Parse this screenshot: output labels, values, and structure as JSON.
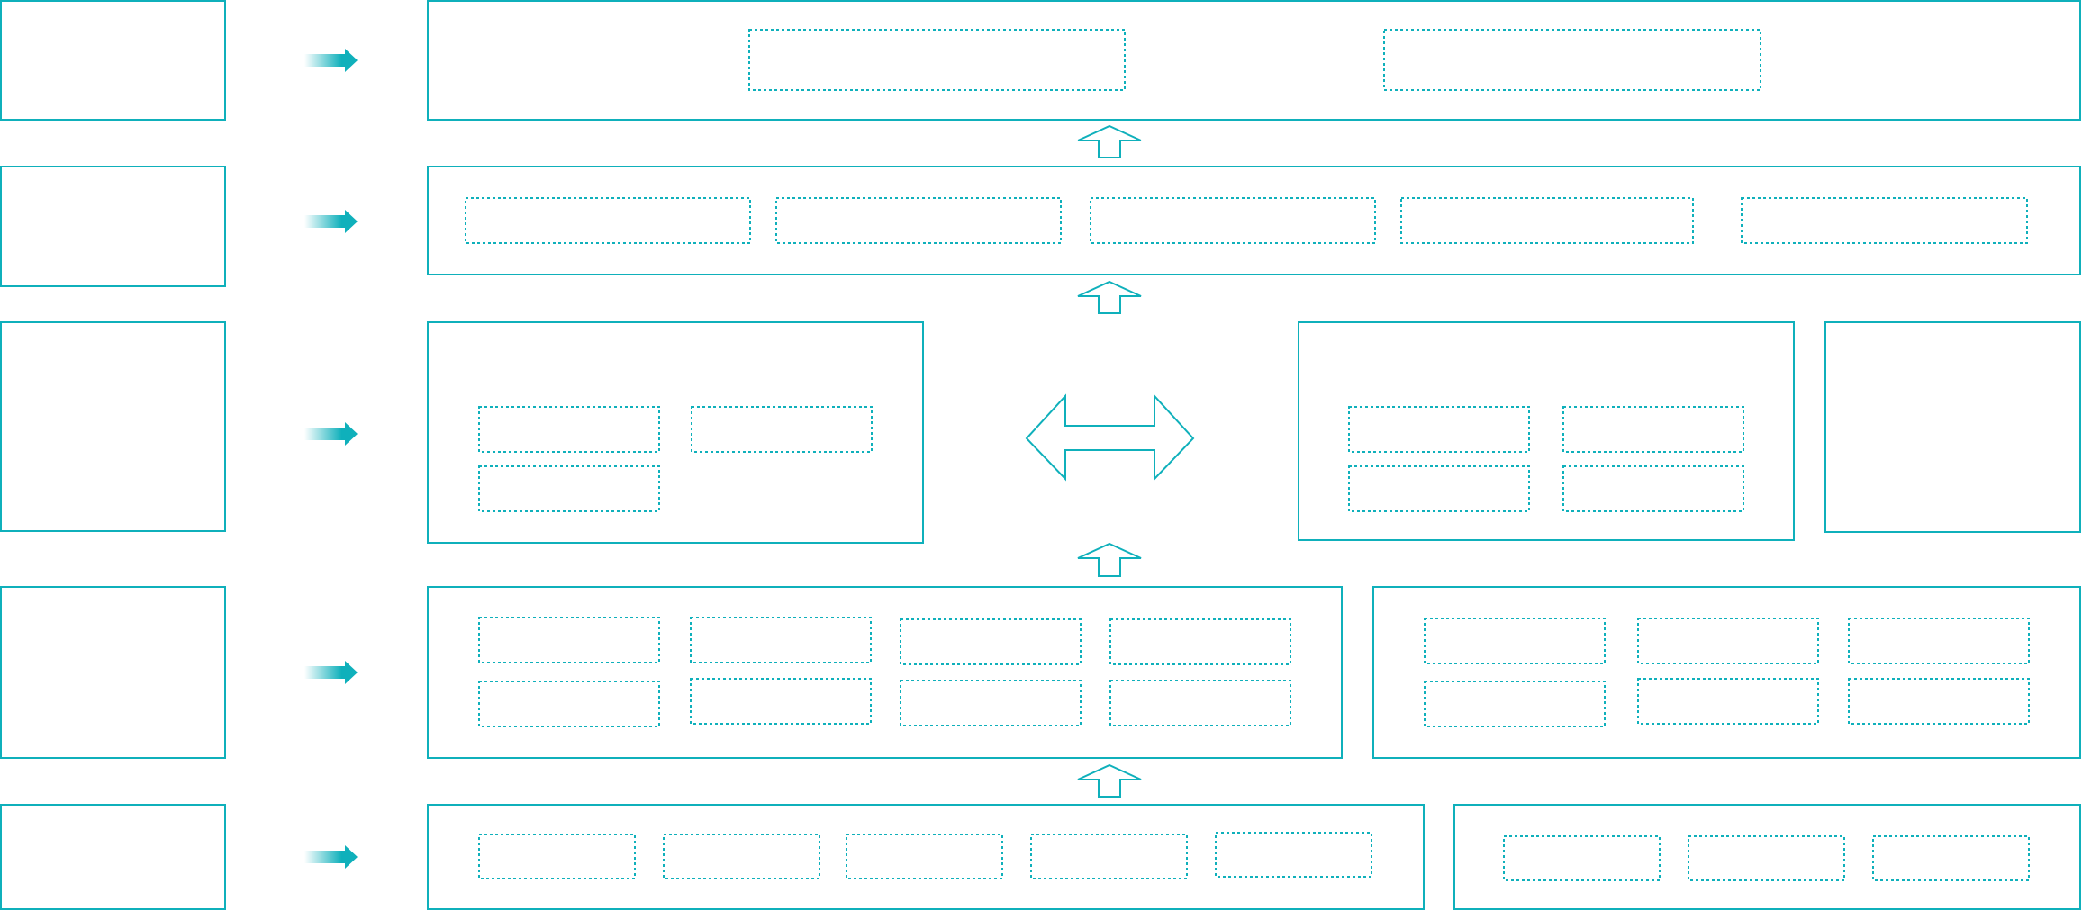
{
  "colors": {
    "stroke": "#0fb0bb",
    "background": "#ffffff"
  }
}
